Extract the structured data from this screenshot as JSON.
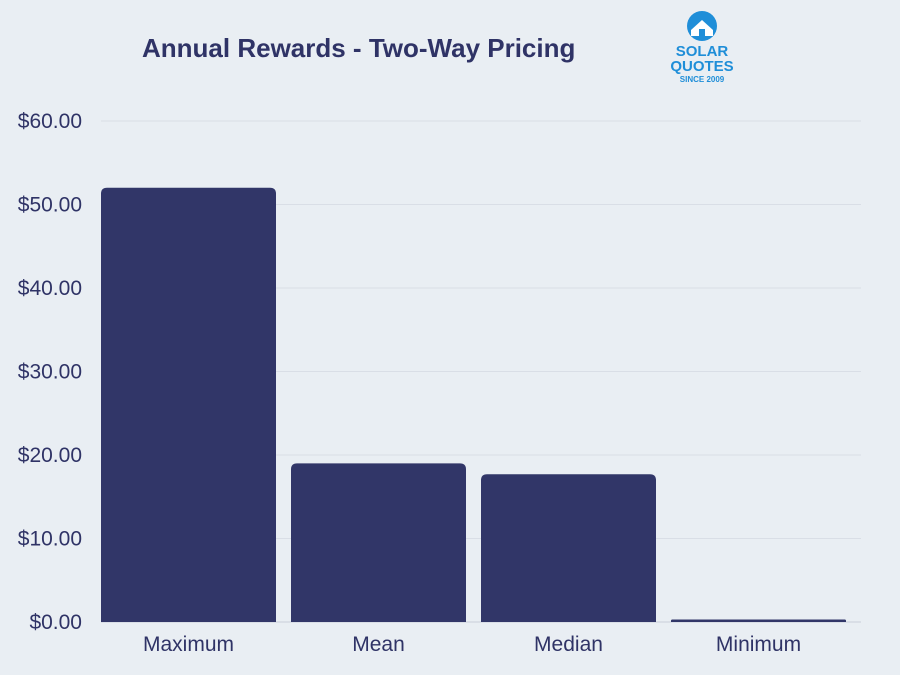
{
  "chart_data": {
    "type": "bar",
    "title": "Annual Rewards - Two-Way Pricing",
    "categories": [
      "Maximum",
      "Mean",
      "Median",
      "Minimum"
    ],
    "values": [
      52.0,
      19.0,
      17.7,
      0.3
    ],
    "ylim": [
      0,
      60
    ],
    "yticks": [
      "$0.00",
      "$10.00",
      "$20.00",
      "$30.00",
      "$40.00",
      "$50.00",
      "$60.00"
    ],
    "grid": true,
    "bar_color": "#313668",
    "grid_color": "#d9dee6"
  },
  "logo": {
    "line1": "SOLAR",
    "line2": "QUOTES",
    "line3": "SINCE 2009",
    "color": "#1f8ed8"
  }
}
